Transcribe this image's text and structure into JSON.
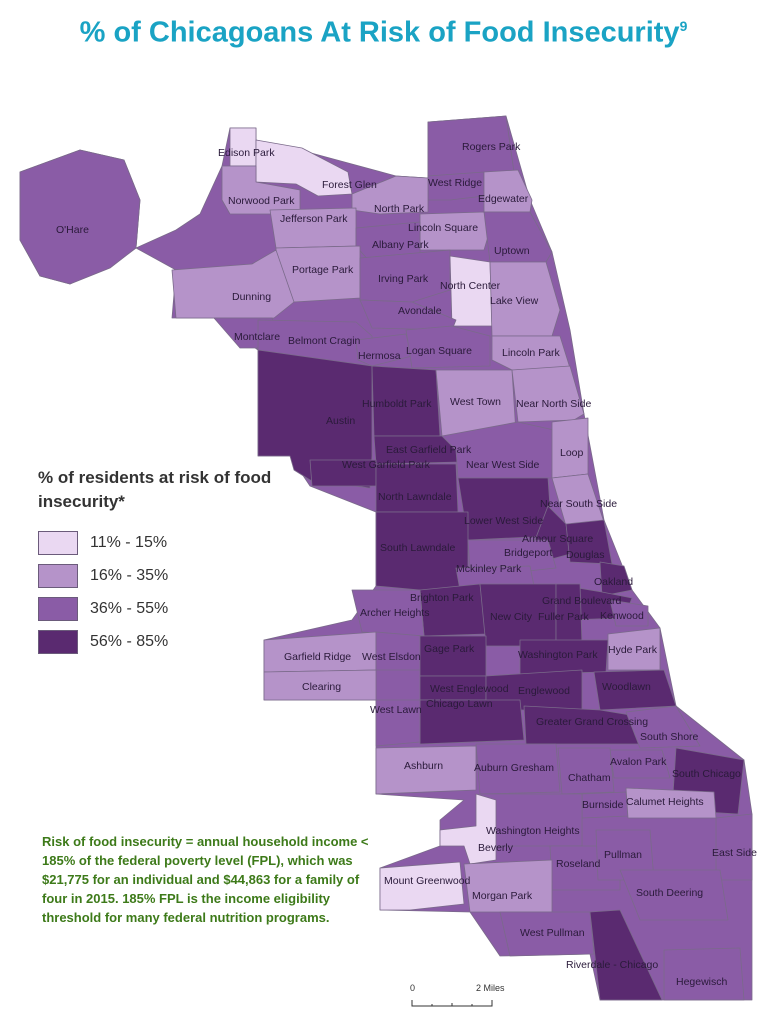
{
  "title": {
    "main": "% of Chicagoans At Risk of Food Insecurity",
    "superscript": "9"
  },
  "legend": {
    "title": "% of residents at risk of food insecurity*",
    "items": [
      {
        "label": "11% - 15%",
        "color": "#ead8f2"
      },
      {
        "label": "16% - 35%",
        "color": "#b593c9"
      },
      {
        "label": "36% - 55%",
        "color": "#8a5ca6"
      },
      {
        "label": "56% - 85%",
        "color": "#5a2a70"
      }
    ]
  },
  "note": "Risk of food insecurity = annual household income < 185% of the federal poverty level (FPL), which was $21,775 for an individual and $44,863 for a family of four in 2015. 185% FPL is the income eligibility threshold for many federal nutrition programs.",
  "scale": {
    "start": "0",
    "end": "2 Miles"
  },
  "neighborhoods": [
    {
      "name": "Edison Park",
      "tier": 1
    },
    {
      "name": "Rogers Park",
      "tier": 3
    },
    {
      "name": "Forest Glen",
      "tier": 1
    },
    {
      "name": "West Ridge",
      "tier": 3
    },
    {
      "name": "Norwood Park",
      "tier": 2
    },
    {
      "name": "North Park",
      "tier": 2
    },
    {
      "name": "Edgewater",
      "tier": 2
    },
    {
      "name": "Jefferson Park",
      "tier": 2
    },
    {
      "name": "Lincoln Square",
      "tier": 2
    },
    {
      "name": "O'Hare",
      "tier": 3
    },
    {
      "name": "Albany Park",
      "tier": 3
    },
    {
      "name": "Uptown",
      "tier": 3
    },
    {
      "name": "Portage Park",
      "tier": 2
    },
    {
      "name": "Irving Park",
      "tier": 3
    },
    {
      "name": "North Center",
      "tier": 1
    },
    {
      "name": "Dunning",
      "tier": 2
    },
    {
      "name": "Lake View",
      "tier": 2
    },
    {
      "name": "Avondale",
      "tier": 3
    },
    {
      "name": "Montclare",
      "tier": 3
    },
    {
      "name": "Belmont Cragin",
      "tier": 3
    },
    {
      "name": "Hermosa",
      "tier": 3
    },
    {
      "name": "Logan Square",
      "tier": 3
    },
    {
      "name": "Lincoln Park",
      "tier": 2
    },
    {
      "name": "Austin",
      "tier": 4
    },
    {
      "name": "Humboldt Park",
      "tier": 4
    },
    {
      "name": "West Town",
      "tier": 2
    },
    {
      "name": "Near North Side",
      "tier": 2
    },
    {
      "name": "East Garfield Park",
      "tier": 4
    },
    {
      "name": "West Garfield Park",
      "tier": 4
    },
    {
      "name": "Near West Side",
      "tier": 3
    },
    {
      "name": "Loop",
      "tier": 2
    },
    {
      "name": "North Lawndale",
      "tier": 4
    },
    {
      "name": "Near South Side",
      "tier": 2
    },
    {
      "name": "Lower West Side",
      "tier": 4
    },
    {
      "name": "Armour Square",
      "tier": 4
    },
    {
      "name": "South Lawndale",
      "tier": 4
    },
    {
      "name": "Bridgeport",
      "tier": 3
    },
    {
      "name": "Douglas",
      "tier": 4
    },
    {
      "name": "Mckinley Park",
      "tier": 3
    },
    {
      "name": "Oakland",
      "tier": 4
    },
    {
      "name": "Brighton Park",
      "tier": 4
    },
    {
      "name": "Grand Boulevard",
      "tier": 4
    },
    {
      "name": "Archer Heights",
      "tier": 3
    },
    {
      "name": "New City",
      "tier": 4
    },
    {
      "name": "Fuller Park",
      "tier": 4
    },
    {
      "name": "Kenwood",
      "tier": 3
    },
    {
      "name": "Garfield Ridge",
      "tier": 2
    },
    {
      "name": "West Elsdon",
      "tier": 3
    },
    {
      "name": "Gage Park",
      "tier": 4
    },
    {
      "name": "Washington Park",
      "tier": 4
    },
    {
      "name": "Hyde Park",
      "tier": 2
    },
    {
      "name": "Clearing",
      "tier": 2
    },
    {
      "name": "West Englewood",
      "tier": 4
    },
    {
      "name": "Englewood",
      "tier": 4
    },
    {
      "name": "Woodlawn",
      "tier": 4
    },
    {
      "name": "Chicago Lawn",
      "tier": 4
    },
    {
      "name": "West Lawn",
      "tier": 3
    },
    {
      "name": "Greater Grand Crossing",
      "tier": 4
    },
    {
      "name": "South Shore",
      "tier": 3
    },
    {
      "name": "Ashburn",
      "tier": 2
    },
    {
      "name": "Auburn Gresham",
      "tier": 3
    },
    {
      "name": "Avalon Park",
      "tier": 3
    },
    {
      "name": "Chatham",
      "tier": 3
    },
    {
      "name": "South Chicago",
      "tier": 4
    },
    {
      "name": "Burnside",
      "tier": 3
    },
    {
      "name": "Calumet Heights",
      "tier": 2
    },
    {
      "name": "Washington Heights",
      "tier": 3
    },
    {
      "name": "Beverly",
      "tier": 1
    },
    {
      "name": "Roseland",
      "tier": 3
    },
    {
      "name": "Pullman",
      "tier": 3
    },
    {
      "name": "East Side",
      "tier": 3
    },
    {
      "name": "Mount Greenwood",
      "tier": 1
    },
    {
      "name": "Morgan Park",
      "tier": 2
    },
    {
      "name": "South Deering",
      "tier": 3
    },
    {
      "name": "West Pullman",
      "tier": 3
    },
    {
      "name": "Riverdale - Chicago",
      "tier": 4
    },
    {
      "name": "Hegewisch",
      "tier": 3
    }
  ]
}
